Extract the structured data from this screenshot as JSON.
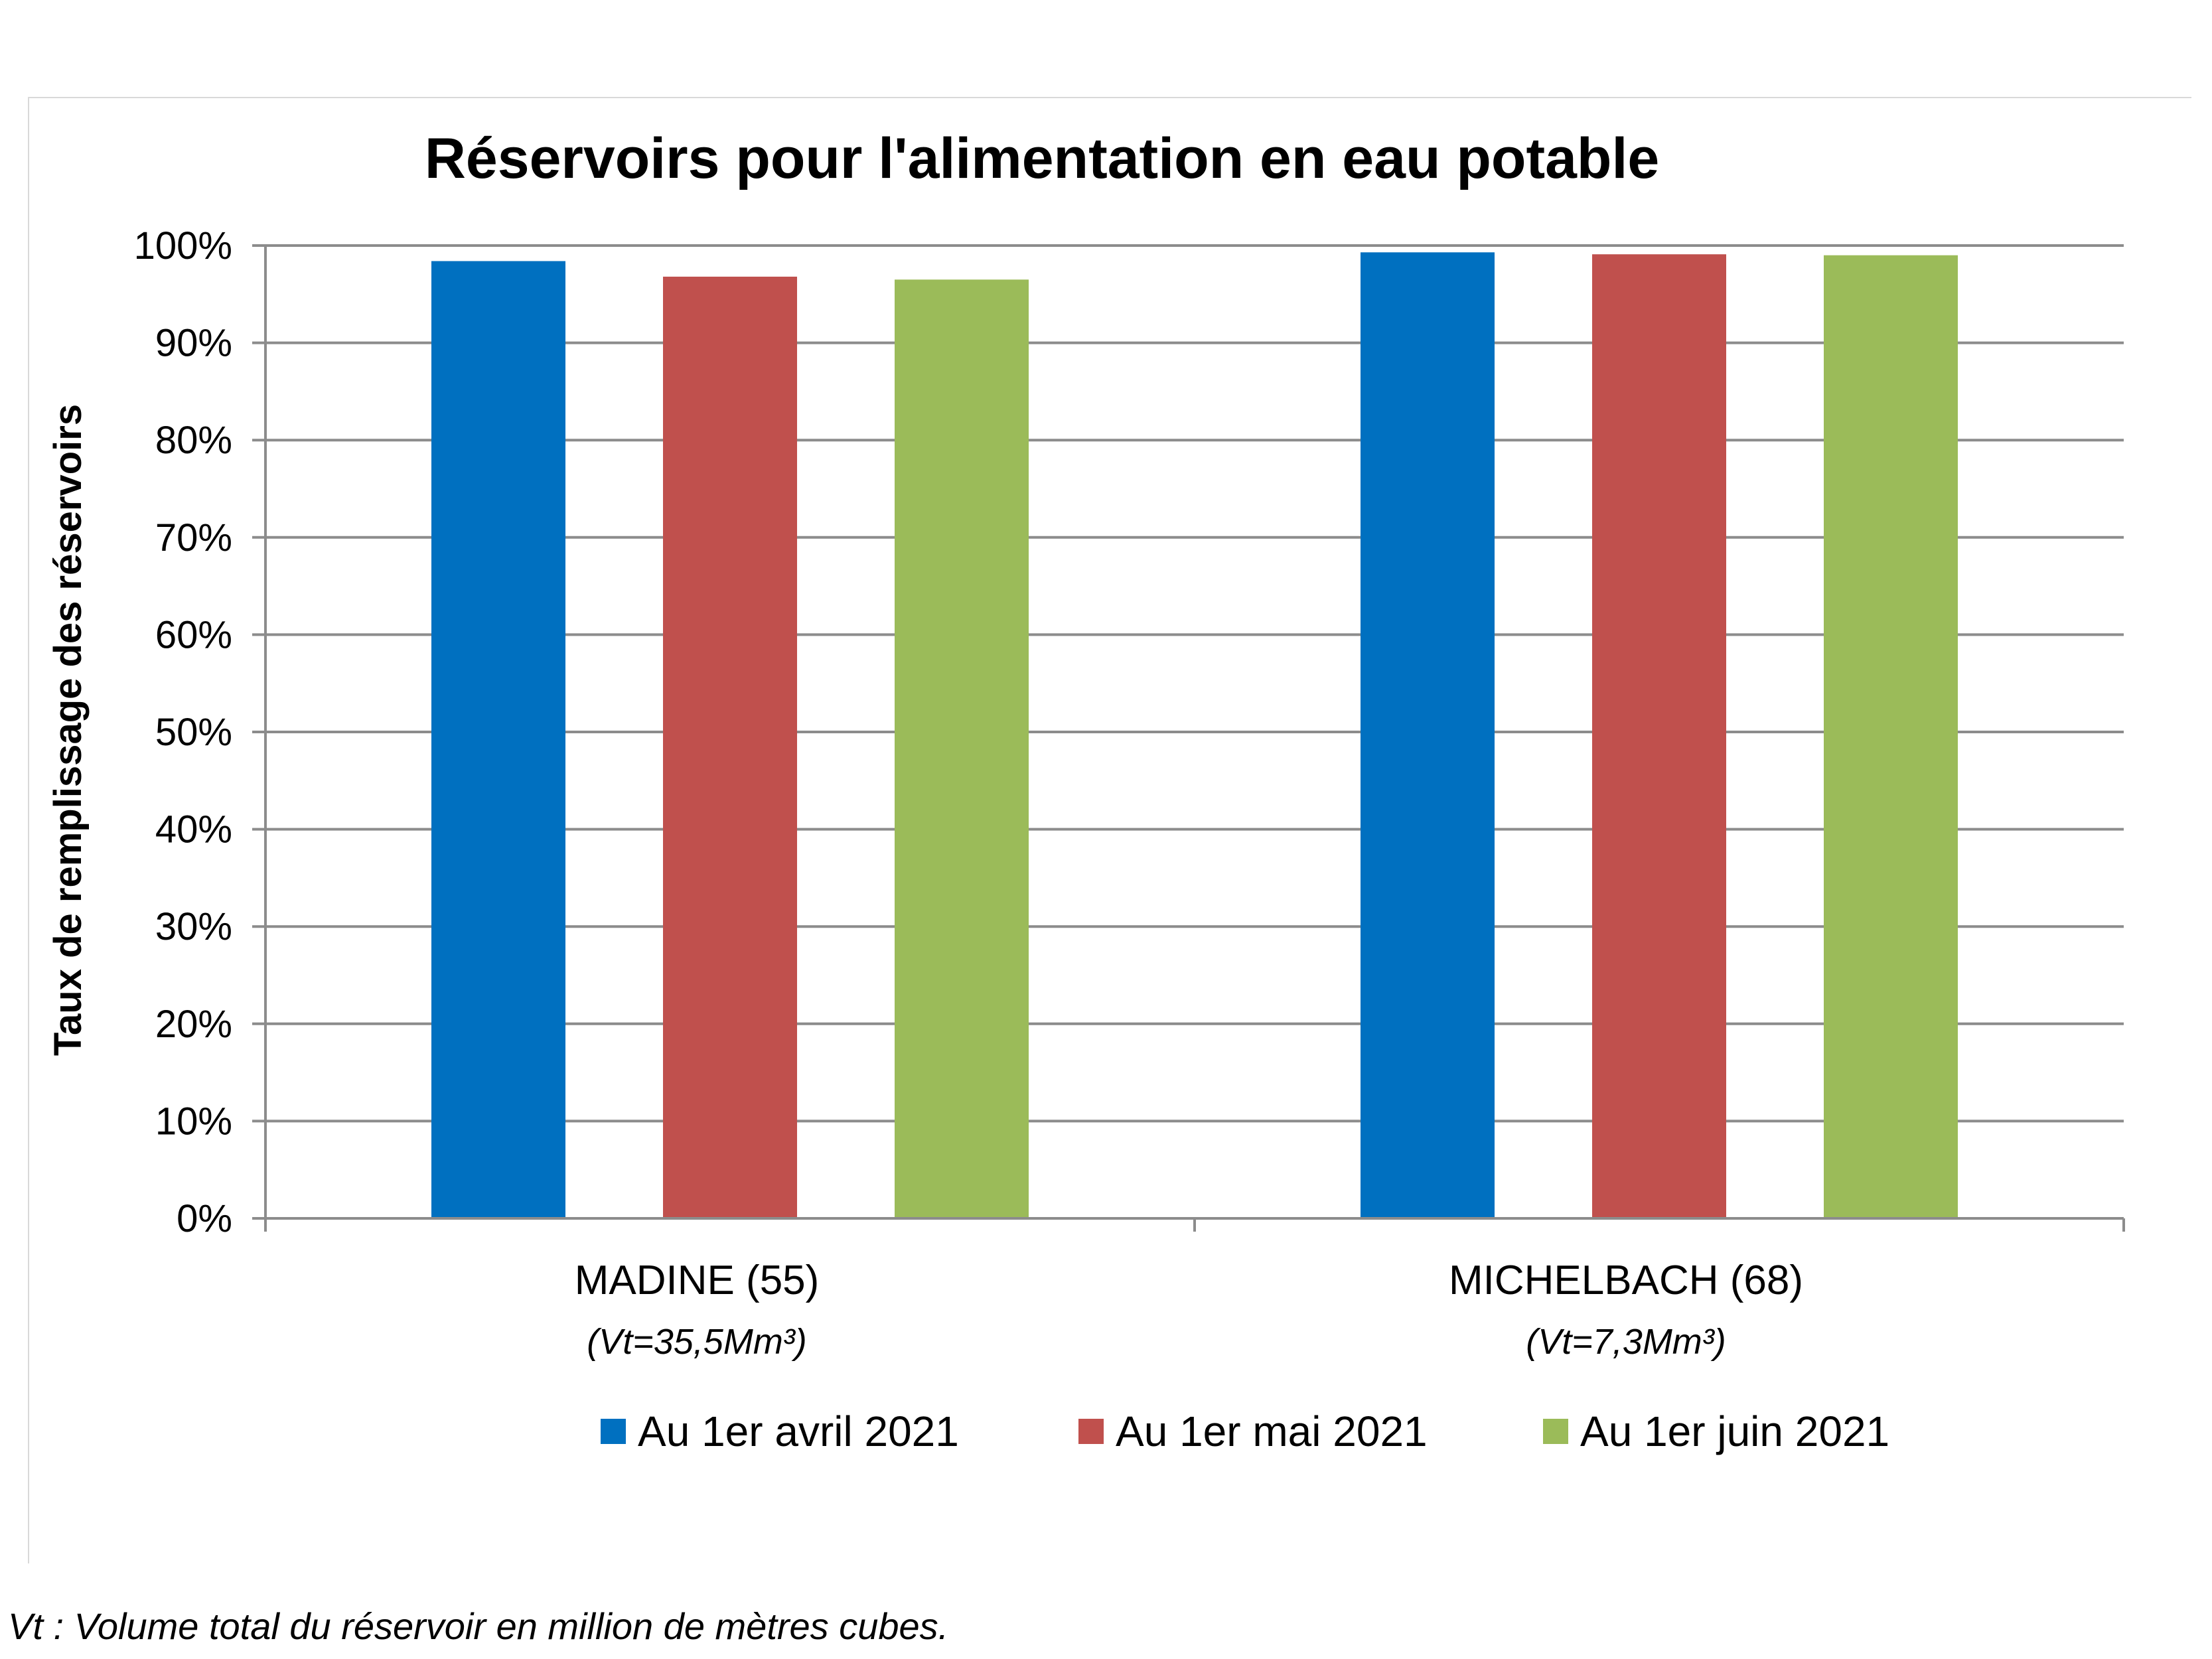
{
  "chart_data": {
    "type": "bar",
    "title": "Réservoirs pour l'alimentation en eau potable",
    "ylabel": "Taux de remplissage des réservoirs",
    "xlabel": "",
    "ylim": [
      0,
      100
    ],
    "yticks": [
      "0%",
      "10%",
      "20%",
      "30%",
      "40%",
      "50%",
      "60%",
      "70%",
      "80%",
      "90%",
      "100%"
    ],
    "grid": true,
    "legend_position": "bottom",
    "categories": [
      {
        "name": "MADINE (55)",
        "sub": "(Vt=35,5Mm³)"
      },
      {
        "name": "MICHELBACH (68)",
        "sub": "(Vt=7,3Mm³)"
      }
    ],
    "series": [
      {
        "name": "Au 1er avril 2021",
        "color": "#0070C0",
        "values": [
          98.4,
          99.3
        ]
      },
      {
        "name": "Au 1er mai 2021",
        "color": "#C0504D",
        "values": [
          96.8,
          99.1
        ]
      },
      {
        "name": "Au 1er juin 2021",
        "color": "#9BBB59",
        "values": [
          96.5,
          99.0
        ]
      }
    ]
  },
  "footnote": "Vt : Volume total du réservoir en million de mètres cubes."
}
